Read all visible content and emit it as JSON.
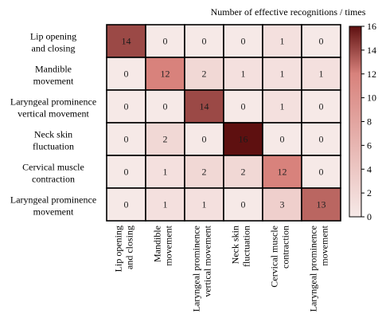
{
  "chart_data": {
    "type": "heatmap",
    "title": "Number of effective recognitions / times",
    "rows": [
      [
        "Lip opening",
        "and closing"
      ],
      [
        "Mandible",
        "movement"
      ],
      [
        "Laryngeal prominence",
        "vertical movement"
      ],
      [
        "Neck skin",
        "fluctuation"
      ],
      [
        "Cervical muscle",
        "contraction"
      ],
      [
        "Laryngeal prominence",
        "movement"
      ]
    ],
    "columns": [
      [
        "Lip opening",
        "and closing"
      ],
      [
        "Mandible",
        "movement"
      ],
      [
        "Laryngeal prominence",
        "vertical movement"
      ],
      [
        "Neck skin",
        "fluctuation"
      ],
      [
        "Cervical muscle",
        "contraction"
      ],
      [
        "Laryngeal prominence",
        "movement"
      ]
    ],
    "values": [
      [
        14,
        0,
        0,
        0,
        1,
        0
      ],
      [
        0,
        12,
        2,
        1,
        1,
        1
      ],
      [
        0,
        0,
        14,
        0,
        1,
        0
      ],
      [
        0,
        2,
        0,
        16,
        0,
        0
      ],
      [
        0,
        1,
        2,
        2,
        12,
        0
      ],
      [
        0,
        1,
        1,
        0,
        3,
        13
      ]
    ],
    "colorbar": {
      "min": 0,
      "max": 16,
      "ticks": [
        0,
        2,
        4,
        6,
        8,
        10,
        12,
        14,
        16
      ]
    },
    "colors": {
      "scale_low": "#f6e9e7",
      "scale_mid": "#d8827c",
      "scale_high": "#5e1010",
      "grid": "#000000"
    }
  }
}
